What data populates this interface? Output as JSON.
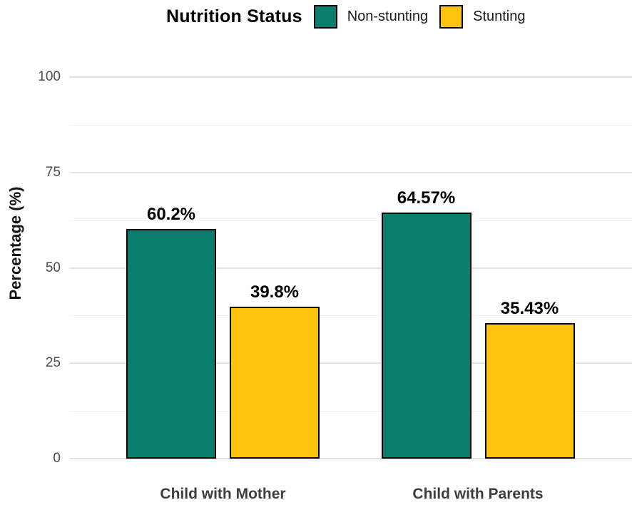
{
  "chart_data": {
    "type": "bar",
    "title": "",
    "legend_title": "Nutrition Status",
    "legend_position": "top",
    "ylabel": "Percentage (%)",
    "xlabel": "",
    "ylim": [
      0,
      100
    ],
    "yticks_major": [
      0,
      25,
      50,
      75,
      100
    ],
    "yticks_minor": [
      12.5,
      37.5,
      62.5,
      87.5
    ],
    "grid": "horizontal",
    "categories": [
      "Child with Mother",
      "Child with Parents"
    ],
    "series": [
      {
        "name": "Non-stunting",
        "color": "#0a7e6d",
        "points": [
          {
            "value": 60.2,
            "label": "60.2%"
          },
          {
            "value": 64.57,
            "label": "64.57%"
          }
        ]
      },
      {
        "name": "Stunting",
        "color": "#ffc30d",
        "points": [
          {
            "value": 39.8,
            "label": "39.8%"
          },
          {
            "value": 35.43,
            "label": "35.43%"
          }
        ]
      }
    ],
    "colors": {
      "bar_border": "#000000",
      "grid_major": "#e4e4e4",
      "grid_minor": "#f1f1f1",
      "tick_label": "#4d4d4d",
      "category_label": "#3d3d3d",
      "value_label": "#000000"
    }
  }
}
